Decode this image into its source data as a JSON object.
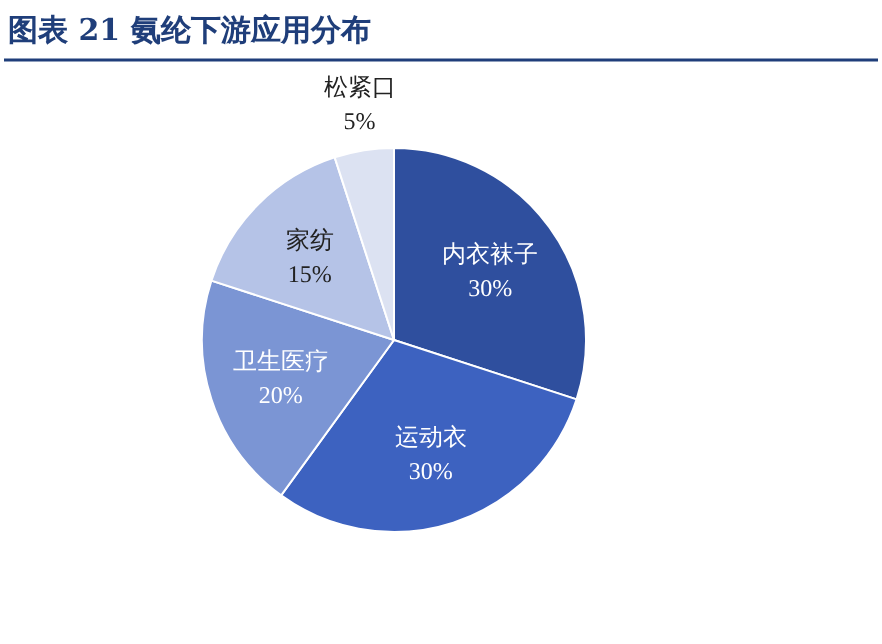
{
  "chart_data": {
    "type": "pie",
    "title": "图表 21   氨纶下游应用分布",
    "categories": [
      "内衣袜子",
      "运动衣",
      "卫生医疗",
      "家纺",
      "松紧口"
    ],
    "values": [
      30,
      30,
      20,
      15,
      5
    ],
    "value_labels": [
      "30%",
      "30%",
      "20%",
      "15%",
      "5%"
    ],
    "colors": [
      "#2f4f9e",
      "#3d62c0",
      "#7b95d4",
      "#b5c3e7",
      "#dce2f2"
    ]
  }
}
